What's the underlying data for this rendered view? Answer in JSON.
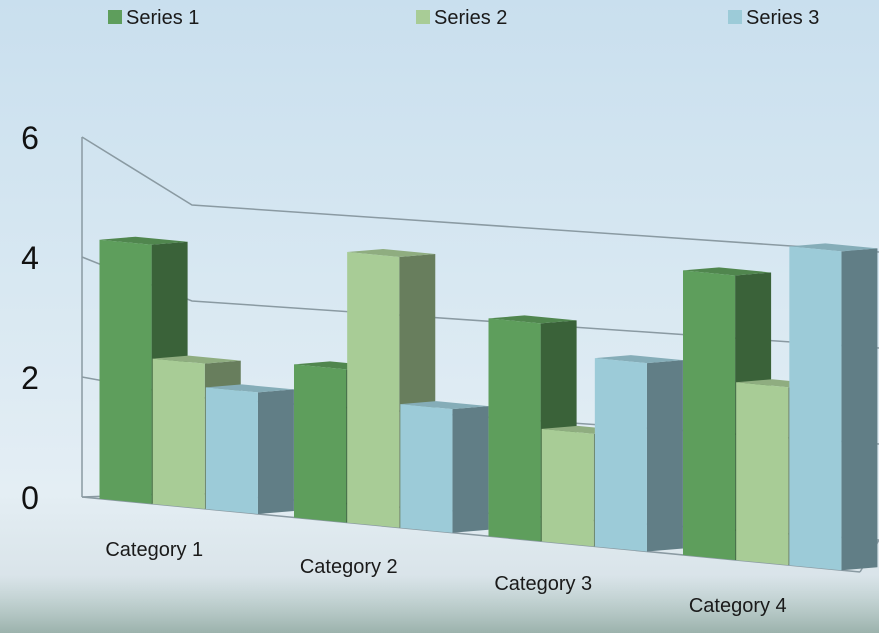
{
  "chart_data": {
    "type": "bar",
    "categories": [
      "Category 1",
      "Category 2",
      "Category 3",
      "Category 4"
    ],
    "series": [
      {
        "name": "Series 1",
        "values": [
          4.3,
          2.5,
          3.5,
          4.5
        ],
        "color": "#5e9e5c"
      },
      {
        "name": "Series 2",
        "values": [
          2.4,
          4.4,
          1.8,
          2.8
        ],
        "color": "#a8cc96"
      },
      {
        "name": "Series 3",
        "values": [
          2.0,
          2.0,
          3.0,
          5.0
        ],
        "color": "#9ccbd8"
      }
    ],
    "yticks": [
      "0",
      "2",
      "4",
      "6"
    ],
    "ylim": [
      0,
      6
    ],
    "grid": true,
    "legend": "top",
    "style": "3d-perspective"
  }
}
